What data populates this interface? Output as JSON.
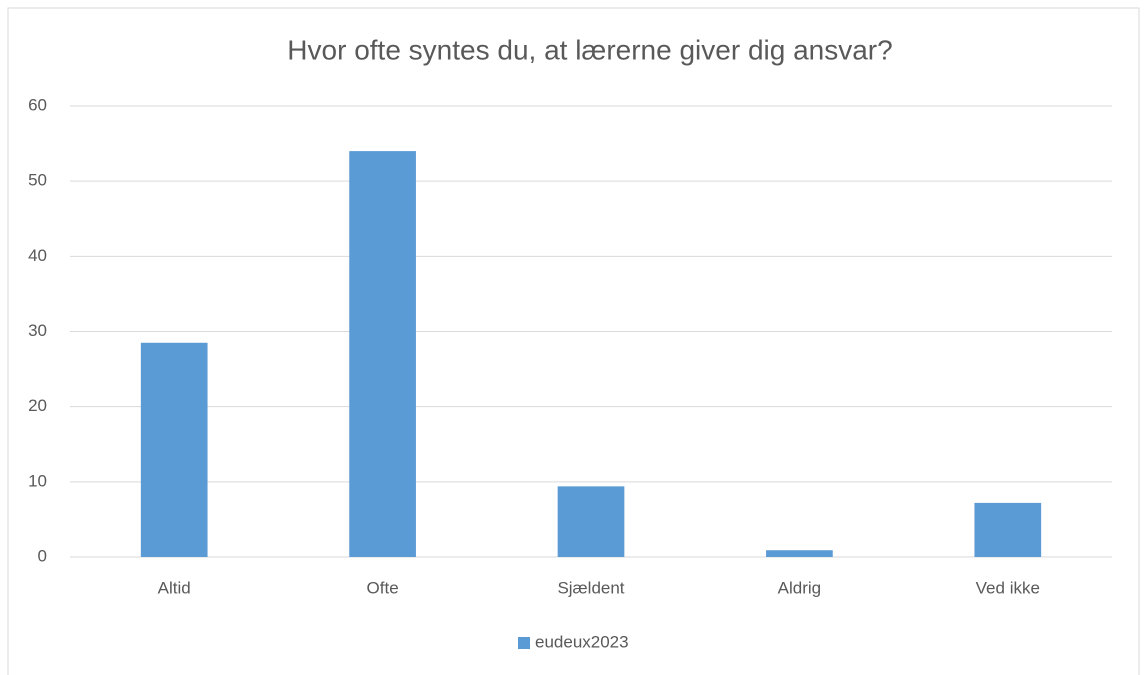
{
  "chart_data": {
    "type": "bar",
    "title": "Hvor ofte syntes du, at lærerne giver dig ansvar?",
    "categories": [
      "Altid",
      "Ofte",
      "Sjældent",
      "Aldrig",
      "Ved ikke"
    ],
    "series": [
      {
        "name": "eudeux2023",
        "color": "#5b9bd5",
        "values": [
          28.5,
          54,
          9.4,
          0.9,
          7.2
        ]
      }
    ],
    "ylim": [
      0,
      60
    ],
    "yticks": [
      0,
      10,
      20,
      30,
      40,
      50,
      60
    ],
    "grid": true,
    "legend": "bottom"
  }
}
